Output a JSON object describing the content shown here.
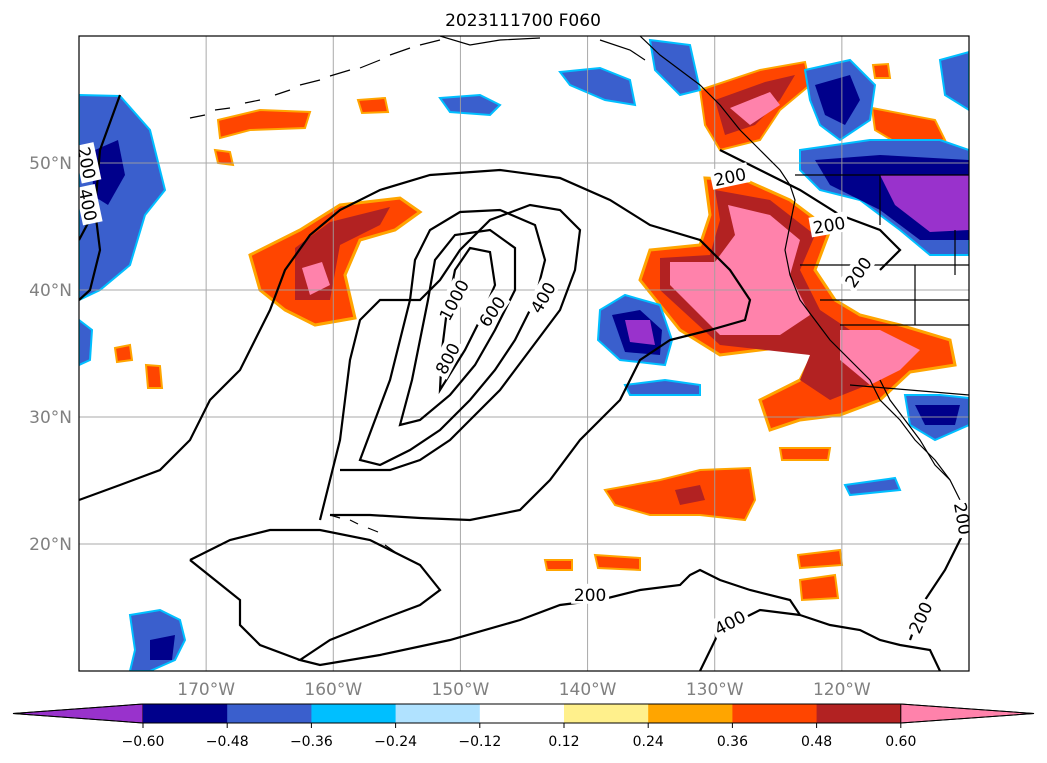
{
  "title": "2023111700 F060",
  "map": {
    "lon_range": [
      -180,
      -110
    ],
    "lat_range": [
      10,
      60
    ],
    "gridlines": true,
    "lon_ticks": [
      {
        "value": -170,
        "label": "170°W"
      },
      {
        "value": -160,
        "label": "160°W"
      },
      {
        "value": -150,
        "label": "150°W"
      },
      {
        "value": -140,
        "label": "140°W"
      },
      {
        "value": -130,
        "label": "130°W"
      },
      {
        "value": -120,
        "label": "120°W"
      }
    ],
    "lat_ticks": [
      {
        "value": 20,
        "label": "20°N"
      },
      {
        "value": 30,
        "label": "30°N"
      },
      {
        "value": 40,
        "label": "40°N"
      },
      {
        "value": 50,
        "label": "50°N"
      }
    ],
    "contour_labels": [
      {
        "text": "1000",
        "lon": -150.5,
        "lat": 39.2,
        "rot": -62
      },
      {
        "text": "800",
        "lon": -151.0,
        "lat": 34.6,
        "rot": -62
      },
      {
        "text": "600",
        "lon": -147.5,
        "lat": 38.3,
        "rot": -55
      },
      {
        "text": "400",
        "lon": -143.5,
        "lat": 39.4,
        "rot": -60
      },
      {
        "text": "200",
        "lon": -139.8,
        "lat": 16.0,
        "rot": 0
      },
      {
        "text": "400",
        "lon": -128.8,
        "lat": 13.8,
        "rot": -28
      },
      {
        "text": "200",
        "lon": -128.8,
        "lat": 48.9,
        "rot": -12
      },
      {
        "text": "200",
        "lon": -121.0,
        "lat": 45.1,
        "rot": -10
      },
      {
        "text": "200",
        "lon": -118.7,
        "lat": 41.4,
        "rot": -55
      },
      {
        "text": "200",
        "lon": -113.8,
        "lat": 14.2,
        "rot": -65
      },
      {
        "text": "200",
        "lon": -110.5,
        "lat": 22.0,
        "rot": 80
      },
      {
        "text": "200",
        "lon": -179.4,
        "lat": 50.0,
        "rot": 78
      },
      {
        "text": "400",
        "lon": -179.3,
        "lat": 46.7,
        "rot": 78
      }
    ]
  },
  "colorbar": {
    "ticks": [
      "−0.60",
      "−0.48",
      "−0.36",
      "−0.24",
      "−0.12",
      "0.12",
      "0.24",
      "0.36",
      "0.48",
      "0.60"
    ],
    "colors": [
      "#9932cc",
      "#00008b",
      "#3a5fcd",
      "#00bfff",
      "#b0e2ff",
      "#ffffff",
      "#fff08c",
      "#ffa500",
      "#ff4500",
      "#b22222",
      "#ff82ab"
    ],
    "extend": "both"
  }
}
